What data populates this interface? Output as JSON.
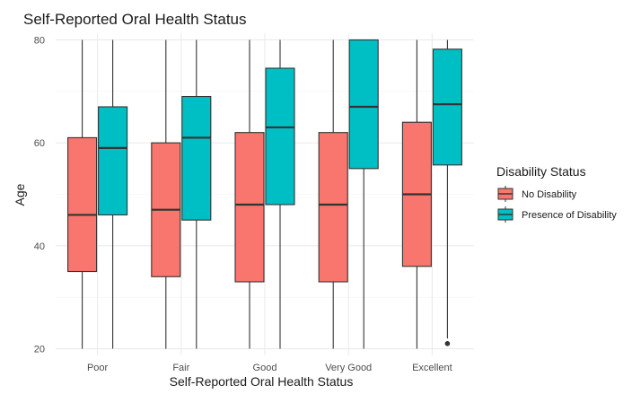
{
  "chart_data": {
    "type": "box",
    "title": "Self-Reported Oral Health Status",
    "xlabel": "Self-Reported Oral Health Status",
    "ylabel": "Age",
    "categories": [
      "Poor",
      "Fair",
      "Good",
      "Very Good",
      "Excellent"
    ],
    "yticks": [
      20,
      40,
      60,
      80
    ],
    "ylim": [
      18.7,
      81.3
    ],
    "grid": true,
    "legend": {
      "title": "Disability Status",
      "position": "right"
    },
    "series": [
      {
        "name": "No Disability",
        "color": "#F8766D",
        "boxes": [
          {
            "min": 20,
            "q1": 35,
            "median": 46,
            "q3": 61,
            "max": 80,
            "outliers": []
          },
          {
            "min": 20,
            "q1": 34,
            "median": 47,
            "q3": 60,
            "max": 80,
            "outliers": []
          },
          {
            "min": 20,
            "q1": 33,
            "median": 48,
            "q3": 62,
            "max": 80,
            "outliers": []
          },
          {
            "min": 20,
            "q1": 33,
            "median": 48,
            "q3": 62,
            "max": 80,
            "outliers": []
          },
          {
            "min": 20,
            "q1": 36,
            "median": 50,
            "q3": 64,
            "max": 80,
            "outliers": []
          }
        ]
      },
      {
        "name": "Presence of Disability",
        "color": "#00BFC4",
        "boxes": [
          {
            "min": 20,
            "q1": 46,
            "median": 59,
            "q3": 67,
            "max": 80,
            "outliers": []
          },
          {
            "min": 20,
            "q1": 45,
            "median": 61,
            "q3": 69,
            "max": 80,
            "outliers": []
          },
          {
            "min": 20,
            "q1": 48,
            "median": 63,
            "q3": 74.5,
            "max": 80,
            "outliers": []
          },
          {
            "min": 20,
            "q1": 55,
            "median": 67,
            "q3": 80,
            "max": 80,
            "outliers": []
          },
          {
            "min": 22,
            "q1": 55.7,
            "median": 67.5,
            "q3": 78.2,
            "max": 80,
            "outliers": [
              21
            ]
          }
        ]
      }
    ]
  }
}
